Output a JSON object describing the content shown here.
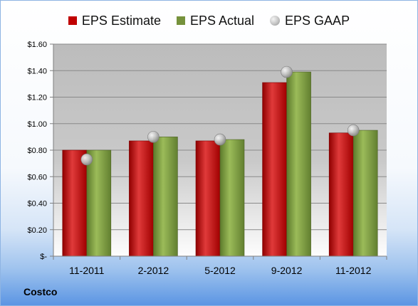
{
  "chart_data": {
    "type": "bar",
    "categories": [
      "11-2011",
      "2-2012",
      "5-2012",
      "9-2012",
      "11-2012"
    ],
    "series": [
      {
        "name": "EPS Estimate",
        "values": [
          0.8,
          0.87,
          0.87,
          1.31,
          0.93
        ],
        "color": "#c00000",
        "kind": "bar"
      },
      {
        "name": "EPS Actual",
        "values": [
          0.8,
          0.9,
          0.88,
          1.39,
          0.95
        ],
        "color": "#76923c",
        "kind": "bar"
      },
      {
        "name": "EPS GAAP",
        "values": [
          0.73,
          0.9,
          0.88,
          1.39,
          0.95
        ],
        "color": "#a6a6a6",
        "kind": "marker"
      }
    ],
    "ylim": [
      0,
      1.6
    ],
    "yticks": [
      {
        "value": 0,
        "label": "$-"
      },
      {
        "value": 0.2,
        "label": "$0.20"
      },
      {
        "value": 0.4,
        "label": "$0.40"
      },
      {
        "value": 0.6,
        "label": "$0.60"
      },
      {
        "value": 0.8,
        "label": "$0.80"
      },
      {
        "value": 1.0,
        "label": "$1.00"
      },
      {
        "value": 1.2,
        "label": "$1.20"
      },
      {
        "value": 1.4,
        "label": "$1.40"
      },
      {
        "value": 1.6,
        "label": "$1.60"
      }
    ],
    "grid": true,
    "legend": "top"
  },
  "footer": {
    "company": "Costco"
  }
}
